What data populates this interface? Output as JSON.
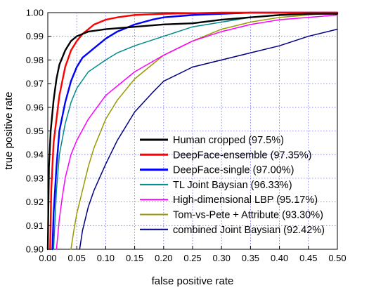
{
  "chart_data": {
    "type": "line",
    "xlabel": "false positive rate",
    "ylabel": "true positive rate",
    "xlim": [
      0.0,
      0.5
    ],
    "ylim": [
      0.9,
      1.0
    ],
    "xticks": [
      "0.00",
      "0.05",
      "0.10",
      "0.15",
      "0.20",
      "0.25",
      "0.30",
      "0.35",
      "0.40",
      "0.45",
      "0.50"
    ],
    "yticks": [
      "0.90",
      "0.91",
      "0.92",
      "0.93",
      "0.94",
      "0.95",
      "0.96",
      "0.97",
      "0.98",
      "0.99",
      "1.00"
    ],
    "grid": true,
    "grid_style": "dotted",
    "legend_position": "bottom-right",
    "series": [
      {
        "name": "Human cropped (97.5%)",
        "color": "#000000",
        "x": [
          0.0,
          0.002,
          0.005,
          0.01,
          0.015,
          0.02,
          0.03,
          0.04,
          0.05,
          0.07,
          0.1,
          0.15,
          0.2,
          0.25,
          0.3,
          0.35,
          0.4,
          0.45,
          0.5
        ],
        "y": [
          0.9,
          0.935,
          0.95,
          0.963,
          0.972,
          0.978,
          0.984,
          0.988,
          0.99,
          0.992,
          0.993,
          0.994,
          0.995,
          0.9955,
          0.997,
          0.998,
          0.999,
          0.9995,
          0.9995
        ]
      },
      {
        "name": "DeepFace-ensemble (97.35%)",
        "color": "#ff0000",
        "x": [
          0.004,
          0.006,
          0.01,
          0.015,
          0.02,
          0.025,
          0.03,
          0.04,
          0.05,
          0.06,
          0.08,
          0.1,
          0.12,
          0.15,
          0.2,
          0.3,
          0.4,
          0.5
        ],
        "y": [
          0.9,
          0.925,
          0.945,
          0.955,
          0.965,
          0.971,
          0.977,
          0.984,
          0.988,
          0.991,
          0.995,
          0.997,
          0.998,
          0.999,
          0.9995,
          1.0,
          1.0,
          1.0
        ]
      },
      {
        "name": "DeepFace-single (97.00%)",
        "color": "#0000ff",
        "x": [
          0.008,
          0.01,
          0.015,
          0.02,
          0.03,
          0.04,
          0.05,
          0.06,
          0.08,
          0.1,
          0.12,
          0.15,
          0.18,
          0.2,
          0.25,
          0.3,
          0.35,
          0.4,
          0.5
        ],
        "y": [
          0.9,
          0.915,
          0.935,
          0.95,
          0.962,
          0.971,
          0.977,
          0.981,
          0.985,
          0.989,
          0.992,
          0.995,
          0.997,
          0.998,
          0.999,
          0.9995,
          1.0,
          1.0,
          1.0
        ]
      },
      {
        "name": "TL Joint Baysian (96.33%)",
        "color": "#008b8b",
        "x": [
          0.01,
          0.012,
          0.015,
          0.02,
          0.03,
          0.04,
          0.05,
          0.07,
          0.1,
          0.12,
          0.15,
          0.2,
          0.25,
          0.3,
          0.35,
          0.4,
          0.45,
          0.5
        ],
        "y": [
          0.9,
          0.91,
          0.925,
          0.94,
          0.953,
          0.962,
          0.968,
          0.975,
          0.98,
          0.983,
          0.986,
          0.99,
          0.994,
          0.996,
          0.998,
          0.999,
          0.9995,
          1.0
        ]
      },
      {
        "name": "High-dimensional LBP (95.17%)",
        "color": "#ff00ff",
        "x": [
          0.015,
          0.02,
          0.025,
          0.03,
          0.04,
          0.05,
          0.07,
          0.1,
          0.15,
          0.2,
          0.25,
          0.3,
          0.35,
          0.4,
          0.45,
          0.5
        ],
        "y": [
          0.9,
          0.913,
          0.922,
          0.93,
          0.94,
          0.946,
          0.955,
          0.965,
          0.975,
          0.982,
          0.988,
          0.992,
          0.995,
          0.997,
          0.998,
          0.999
        ]
      },
      {
        "name": "Tom-vs-Pete + Attribute (93.30%)",
        "color": "#999900",
        "x": [
          0.04,
          0.045,
          0.05,
          0.06,
          0.07,
          0.08,
          0.1,
          0.12,
          0.15,
          0.18,
          0.2,
          0.25,
          0.3,
          0.35,
          0.4,
          0.45,
          0.5
        ],
        "y": [
          0.9,
          0.908,
          0.915,
          0.925,
          0.935,
          0.943,
          0.955,
          0.963,
          0.972,
          0.978,
          0.982,
          0.988,
          0.993,
          0.996,
          0.998,
          0.999,
          1.0
        ]
      },
      {
        "name": "combined Joint Baysian (92.42%)",
        "color": "#000080",
        "x": [
          0.055,
          0.06,
          0.07,
          0.08,
          0.1,
          0.12,
          0.15,
          0.18,
          0.2,
          0.25,
          0.3,
          0.35,
          0.4,
          0.45,
          0.5
        ],
        "y": [
          0.9,
          0.908,
          0.918,
          0.925,
          0.936,
          0.946,
          0.958,
          0.966,
          0.971,
          0.977,
          0.98,
          0.983,
          0.986,
          0.99,
          0.993
        ]
      }
    ]
  }
}
